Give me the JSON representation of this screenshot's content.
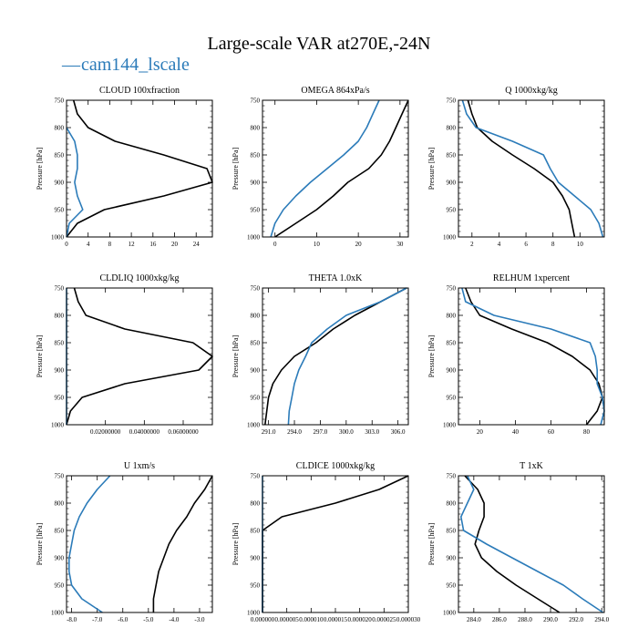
{
  "chart_data": {
    "title": "Large-scale VAR at270E,-24N",
    "legend": {
      "label": "cam144_lscale",
      "line": "—"
    },
    "colors": {
      "cam144_lscale": "#2b7bb9",
      "reference": "#000000"
    },
    "ylabel": "Pressure [hPa]",
    "ylim": [
      750,
      1000
    ],
    "yticks": [
      750,
      800,
      850,
      900,
      950,
      1000
    ],
    "panels": [
      {
        "title": "CLOUD 100xfraction",
        "type": "line",
        "xlim": [
          0,
          27
        ],
        "xticks": [
          0,
          4,
          8,
          12,
          16,
          20,
          24
        ],
        "xticklabels": [
          "0",
          "4",
          "8",
          "12",
          "16",
          "20",
          "24"
        ],
        "pressure": [
          750,
          775,
          800,
          825,
          850,
          875,
          900,
          925,
          950,
          975,
          1000
        ],
        "series": [
          {
            "name": "reference",
            "values": [
              1.3,
              2,
              4,
              9,
              18,
              26,
              27,
              18,
              7,
              2,
              0
            ]
          },
          {
            "name": "cam144_lscale",
            "values": [
              null,
              null,
              0,
              1.5,
              2,
              2,
              1.5,
              2,
              3,
              0.5,
              0
            ]
          }
        ]
      },
      {
        "title": "OMEGA 864xPa/s",
        "type": "line",
        "xlim": [
          -3,
          32
        ],
        "xticks": [
          0,
          10,
          20,
          30
        ],
        "xticklabels": [
          "0",
          "10",
          "20",
          "30"
        ],
        "pressure": [
          750,
          775,
          800,
          825,
          850,
          875,
          900,
          925,
          950,
          975,
          1000
        ],
        "series": [
          {
            "name": "reference",
            "values": [
              32,
              30.5,
              29,
              27.5,
              25.5,
              22.5,
              17.5,
              14,
              10,
              5,
              0
            ]
          },
          {
            "name": "cam144_lscale",
            "values": [
              25,
              23.5,
              22,
              20,
              16.5,
              12.5,
              8.5,
              5,
              2,
              0,
              -1
            ]
          }
        ]
      },
      {
        "title": "Q 1000xkg/kg",
        "type": "line",
        "xlim": [
          1,
          11.8
        ],
        "xticks": [
          2,
          4,
          6,
          8,
          10
        ],
        "xticklabels": [
          "2",
          "4",
          "6",
          "8",
          "10"
        ],
        "pressure": [
          750,
          775,
          800,
          825,
          850,
          875,
          900,
          925,
          950,
          975,
          1000
        ],
        "series": [
          {
            "name": "reference",
            "values": [
              1.7,
              2,
              2.4,
              3.5,
              5,
              6.6,
              8,
              8.7,
              9.2,
              9.4,
              9.6
            ]
          },
          {
            "name": "cam144_lscale",
            "values": [
              1.3,
              1.6,
              2.3,
              5,
              7.3,
              7.8,
              8.4,
              9.6,
              10.8,
              11.4,
              11.7
            ]
          }
        ]
      },
      {
        "title": "CLDLIQ 1000xkg/kg",
        "type": "line",
        "xlim": [
          0,
          0.075
        ],
        "xticks": [
          0.02,
          0.04,
          0.06
        ],
        "xticklabels": [
          "0.02000000",
          "0.04000000",
          "0.06000000"
        ],
        "pressure": [
          750,
          775,
          800,
          825,
          850,
          875,
          900,
          925,
          950,
          975,
          1000
        ],
        "series": [
          {
            "name": "reference",
            "values": [
              0.004,
              0.006,
              0.01,
              0.03,
              0.065,
              0.075,
              0.068,
              0.03,
              0.008,
              0.002,
              0
            ]
          },
          {
            "name": "cam144_lscale",
            "values": [
              0,
              0,
              0,
              0,
              0,
              0,
              0,
              0,
              0,
              0,
              0
            ]
          }
        ]
      },
      {
        "title": "THETA 1.0xK",
        "type": "line",
        "xlim": [
          290.3,
          307.2
        ],
        "xticks": [
          291,
          294,
          297,
          300,
          303,
          306
        ],
        "xticklabels": [
          "291.0",
          "294.0",
          "297.0",
          "300.0",
          "303.0",
          "306.0"
        ],
        "pressure": [
          750,
          775,
          800,
          825,
          850,
          875,
          900,
          925,
          950,
          975,
          1000
        ],
        "series": [
          {
            "name": "reference",
            "values": [
              307,
              304,
              301,
              298.5,
              296.5,
              294,
              292.5,
              291.5,
              291,
              290.8,
              290.6
            ]
          },
          {
            "name": "cam144_lscale",
            "values": [
              307,
              304,
              300,
              297.8,
              296,
              295.3,
              294.5,
              294,
              293.7,
              293.4,
              293.3
            ]
          }
        ]
      },
      {
        "title": "RELHUM 1xpercent",
        "type": "line",
        "xlim": [
          8,
          90
        ],
        "xticks": [
          20,
          40,
          60,
          80
        ],
        "xticklabels": [
          "20",
          "40",
          "60",
          "80"
        ],
        "pressure": [
          750,
          775,
          800,
          825,
          850,
          875,
          900,
          925,
          950,
          975,
          1000
        ],
        "series": [
          {
            "name": "reference",
            "values": [
              12,
              15,
              20,
              38,
              58,
              72,
              82,
              87,
              89,
              86,
              80
            ]
          },
          {
            "name": "cam144_lscale",
            "values": [
              10,
              12,
              28,
              60,
              82,
              85,
              86,
              86,
              89,
              90,
              88
            ]
          }
        ]
      },
      {
        "title": "U 1xm/s",
        "type": "line",
        "xlim": [
          -8.2,
          -2.5
        ],
        "xticks": [
          -8,
          -7,
          -6,
          -5,
          -4,
          -3
        ],
        "xticklabels": [
          "-8.0",
          "-7.0",
          "-6.0",
          "-5.0",
          "-4.0",
          "-3.0"
        ],
        "pressure": [
          750,
          775,
          800,
          825,
          850,
          875,
          900,
          925,
          950,
          975,
          1000
        ],
        "series": [
          {
            "name": "reference",
            "values": [
              -2.5,
              -2.8,
              -3.2,
              -3.5,
              -3.9,
              -4.2,
              -4.4,
              -4.6,
              -4.7,
              -4.8,
              -4.8
            ]
          },
          {
            "name": "cam144_lscale",
            "values": [
              -6.5,
              -7.0,
              -7.4,
              -7.7,
              -7.9,
              -8.0,
              -8.1,
              -8.1,
              -8.0,
              -7.6,
              -6.8
            ]
          }
        ]
      },
      {
        "title": "CLDICE 1000xkg/kg",
        "type": "line",
        "xlim": [
          0,
          3e-05
        ],
        "xticks": [
          0,
          5e-06,
          1e-05,
          1.5e-05,
          2e-05,
          2.5e-05,
          3e-05
        ],
        "xticklabels": [
          "0.000000",
          "0.000005",
          "0.000010",
          "0.000015",
          "0.000020",
          "0.000025",
          "0.000030"
        ],
        "pressure": [
          750,
          775,
          800,
          825,
          850,
          875,
          900,
          925,
          950,
          975,
          1000
        ],
        "series": [
          {
            "name": "reference",
            "values": [
              3e-05,
              2.4e-05,
              1.5e-05,
              4e-06,
              0,
              0,
              0,
              0,
              0,
              0,
              0
            ]
          },
          {
            "name": "cam144_lscale",
            "values": [
              0,
              0,
              0,
              0,
              0,
              0,
              0,
              0,
              0,
              0,
              0
            ]
          }
        ]
      },
      {
        "title": "T 1xK",
        "type": "line",
        "xlim": [
          282.8,
          294.2
        ],
        "xticks": [
          284,
          286,
          288,
          290,
          292,
          294
        ],
        "xticklabels": [
          "284.0",
          "286.0",
          "288.0",
          "290.0",
          "292.0",
          "294.0"
        ],
        "pressure": [
          750,
          775,
          800,
          825,
          850,
          875,
          900,
          925,
          950,
          975,
          1000
        ],
        "series": [
          {
            "name": "reference",
            "values": [
              283.3,
              284.3,
              284.8,
              284.8,
              284.4,
              284.1,
              284.6,
              285.8,
              287.3,
              289.0,
              290.7
            ]
          },
          {
            "name": "cam144_lscale",
            "values": [
              283.5,
              284.0,
              283.5,
              283.0,
              283.2,
              285.0,
              287.0,
              289.0,
              291.0,
              292.5,
              294.1
            ]
          }
        ]
      }
    ]
  }
}
